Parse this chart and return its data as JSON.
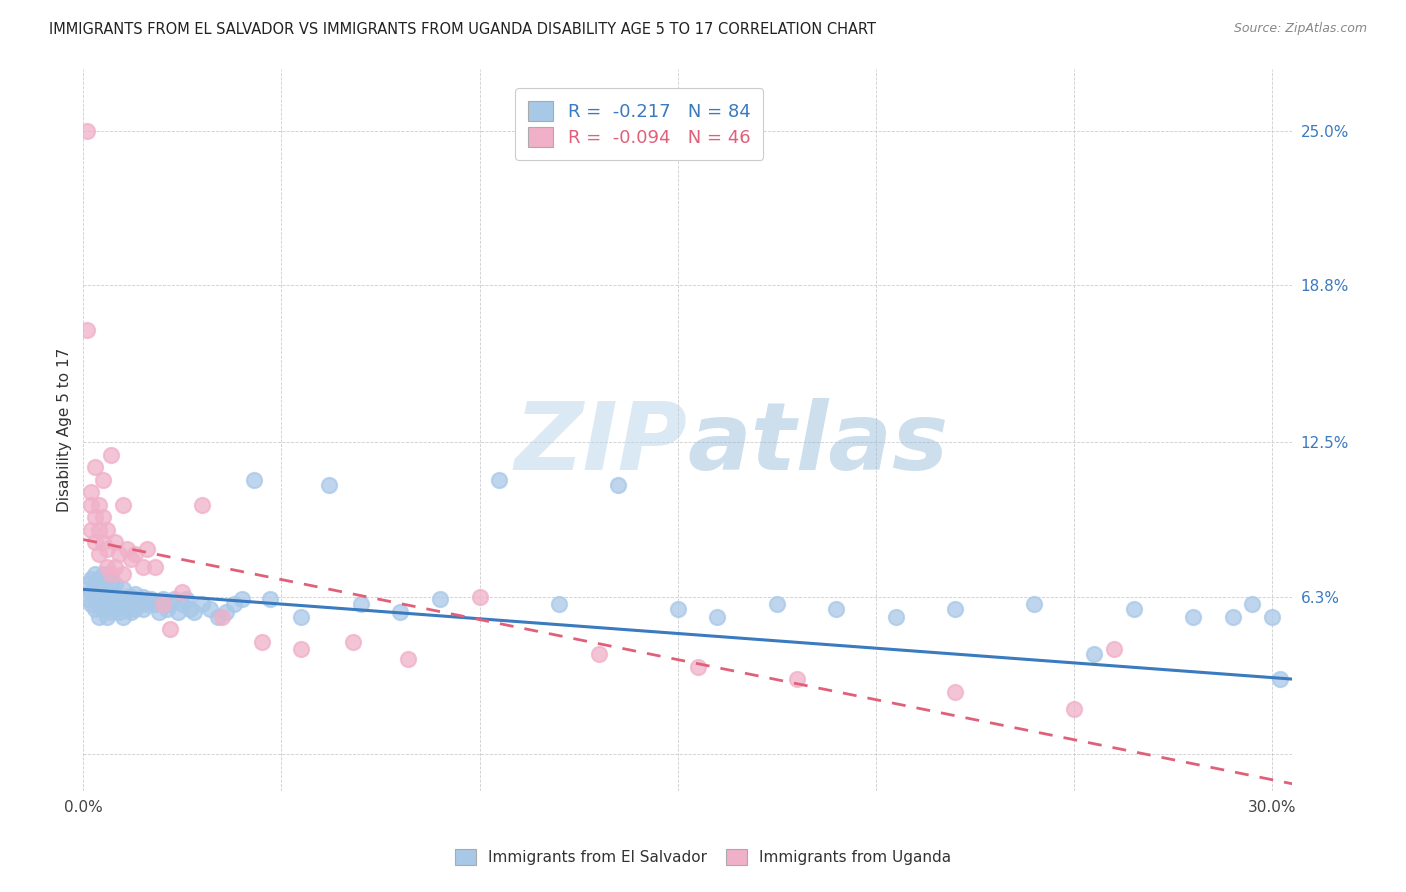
{
  "title": "IMMIGRANTS FROM EL SALVADOR VS IMMIGRANTS FROM UGANDA DISABILITY AGE 5 TO 17 CORRELATION CHART",
  "source": "Source: ZipAtlas.com",
  "ylabel": "Disability Age 5 to 17",
  "xlim": [
    0.0,
    0.305
  ],
  "ylim": [
    -0.015,
    0.275
  ],
  "ytick_vals": [
    0.0,
    0.063,
    0.125,
    0.188,
    0.25
  ],
  "ytick_labels": [
    "",
    "6.3%",
    "12.5%",
    "18.8%",
    "25.0%"
  ],
  "xtick_vals": [
    0.0,
    0.05,
    0.1,
    0.15,
    0.2,
    0.25,
    0.3
  ],
  "xtick_labels": [
    "0.0%",
    "",
    "",
    "",
    "",
    "",
    "30.0%"
  ],
  "blue_scatter_color": "#a8c8e8",
  "pink_scatter_color": "#f0b0c8",
  "blue_line_color": "#3a7abf",
  "pink_line_color": "#e0607a",
  "R_blue": -0.217,
  "N_blue": 84,
  "R_pink": -0.094,
  "N_pink": 46,
  "watermark_zip": "ZIP",
  "watermark_atlas": "atlas",
  "legend_label_blue": "Immigrants from El Salvador",
  "legend_label_pink": "Immigrants from Uganda",
  "blue_points_x": [
    0.001,
    0.001,
    0.002,
    0.002,
    0.002,
    0.003,
    0.003,
    0.003,
    0.003,
    0.004,
    0.004,
    0.004,
    0.004,
    0.005,
    0.005,
    0.005,
    0.005,
    0.006,
    0.006,
    0.006,
    0.006,
    0.007,
    0.007,
    0.007,
    0.008,
    0.008,
    0.008,
    0.009,
    0.009,
    0.01,
    0.01,
    0.01,
    0.011,
    0.011,
    0.012,
    0.012,
    0.013,
    0.013,
    0.014,
    0.015,
    0.015,
    0.016,
    0.017,
    0.018,
    0.019,
    0.02,
    0.021,
    0.022,
    0.023,
    0.024,
    0.025,
    0.026,
    0.027,
    0.028,
    0.03,
    0.032,
    0.034,
    0.036,
    0.038,
    0.04,
    0.043,
    0.047,
    0.055,
    0.062,
    0.07,
    0.08,
    0.09,
    0.105,
    0.12,
    0.135,
    0.15,
    0.16,
    0.175,
    0.19,
    0.205,
    0.22,
    0.24,
    0.255,
    0.265,
    0.28,
    0.29,
    0.295,
    0.3,
    0.302
  ],
  "blue_points_y": [
    0.062,
    0.068,
    0.06,
    0.065,
    0.07,
    0.058,
    0.063,
    0.068,
    0.072,
    0.055,
    0.06,
    0.065,
    0.07,
    0.058,
    0.062,
    0.067,
    0.072,
    0.055,
    0.06,
    0.065,
    0.07,
    0.057,
    0.062,
    0.068,
    0.058,
    0.063,
    0.068,
    0.057,
    0.062,
    0.055,
    0.06,
    0.066,
    0.058,
    0.063,
    0.057,
    0.063,
    0.058,
    0.064,
    0.06,
    0.058,
    0.063,
    0.06,
    0.062,
    0.06,
    0.057,
    0.062,
    0.058,
    0.06,
    0.062,
    0.057,
    0.06,
    0.062,
    0.058,
    0.057,
    0.06,
    0.058,
    0.055,
    0.057,
    0.06,
    0.062,
    0.11,
    0.062,
    0.055,
    0.108,
    0.06,
    0.057,
    0.062,
    0.11,
    0.06,
    0.108,
    0.058,
    0.055,
    0.06,
    0.058,
    0.055,
    0.058,
    0.06,
    0.04,
    0.058,
    0.055,
    0.055,
    0.06,
    0.055,
    0.03
  ],
  "pink_points_x": [
    0.001,
    0.001,
    0.002,
    0.002,
    0.002,
    0.003,
    0.003,
    0.003,
    0.004,
    0.004,
    0.004,
    0.005,
    0.005,
    0.005,
    0.006,
    0.006,
    0.006,
    0.007,
    0.007,
    0.008,
    0.008,
    0.009,
    0.01,
    0.01,
    0.011,
    0.012,
    0.013,
    0.015,
    0.016,
    0.018,
    0.02,
    0.022,
    0.025,
    0.03,
    0.035,
    0.045,
    0.055,
    0.068,
    0.082,
    0.1,
    0.13,
    0.155,
    0.18,
    0.22,
    0.25,
    0.26
  ],
  "pink_points_y": [
    0.25,
    0.17,
    0.09,
    0.1,
    0.105,
    0.085,
    0.095,
    0.115,
    0.08,
    0.09,
    0.1,
    0.085,
    0.095,
    0.11,
    0.075,
    0.082,
    0.09,
    0.072,
    0.12,
    0.075,
    0.085,
    0.08,
    0.1,
    0.072,
    0.082,
    0.078,
    0.08,
    0.075,
    0.082,
    0.075,
    0.06,
    0.05,
    0.065,
    0.1,
    0.055,
    0.045,
    0.042,
    0.045,
    0.038,
    0.063,
    0.04,
    0.035,
    0.03,
    0.025,
    0.018,
    0.042
  ],
  "blue_trend_x0": 0.0,
  "blue_trend_y0": 0.066,
  "blue_trend_x1": 0.305,
  "blue_trend_y1": 0.03,
  "pink_trend_x0": 0.0,
  "pink_trend_y0": 0.086,
  "pink_trend_x1": 0.305,
  "pink_trend_y1": -0.012
}
